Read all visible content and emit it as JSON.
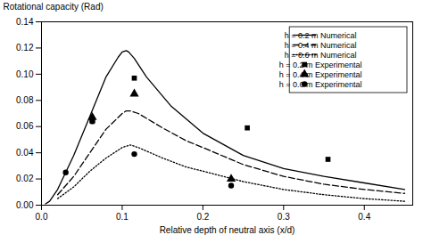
{
  "chart_data": {
    "type": "line",
    "xlabel": "Relative depth of neutral axis (x/d)",
    "ylabel": "Rotational capacity (Rad)",
    "xlim": [
      0,
      0.46
    ],
    "ylim": [
      0,
      0.14
    ],
    "xticks": [
      {
        "value": 0,
        "label": "0.0"
      },
      0.1,
      0.2,
      0.3,
      0.4
    ],
    "yticks": [
      {
        "value": 0,
        "label": "0.00"
      },
      0.02,
      0.04,
      0.06,
      0.08,
      {
        "value": 0.1,
        "label": "0.10"
      },
      0.12,
      0.14
    ],
    "grid": false,
    "legend": "upper right",
    "color": "black",
    "series": [
      {
        "name": "h = 0.2 m Numerical",
        "type": "line",
        "line_style": "solid",
        "x": [
          0.005,
          0.01,
          0.02,
          0.04,
          0.06,
          0.08,
          0.095,
          0.1,
          0.105,
          0.108,
          0.115,
          0.13,
          0.16,
          0.2,
          0.25,
          0.3,
          0.35,
          0.4,
          0.45
        ],
        "values": [
          0.001,
          0.003,
          0.012,
          0.038,
          0.068,
          0.098,
          0.113,
          0.117,
          0.118,
          0.117,
          0.112,
          0.098,
          0.076,
          0.055,
          0.038,
          0.028,
          0.022,
          0.017,
          0.012
        ]
      },
      {
        "name": "h = 0.4 m Numerical",
        "type": "line",
        "line_style": "dashed",
        "x": [
          0.02,
          0.04,
          0.06,
          0.08,
          0.1,
          0.105,
          0.11,
          0.12,
          0.15,
          0.18,
          0.2,
          0.25,
          0.3,
          0.35,
          0.4,
          0.45
        ],
        "values": [
          0.008,
          0.022,
          0.04,
          0.058,
          0.07,
          0.072,
          0.072,
          0.07,
          0.059,
          0.049,
          0.044,
          0.031,
          0.022,
          0.016,
          0.012,
          0.009
        ]
      },
      {
        "name": "h = 0.6 m Numerical",
        "type": "line",
        "line_style": "dotted",
        "x": [
          0.02,
          0.04,
          0.06,
          0.08,
          0.1,
          0.105,
          0.11,
          0.12,
          0.15,
          0.18,
          0.2,
          0.25,
          0.3,
          0.35,
          0.4,
          0.45
        ],
        "values": [
          0.005,
          0.014,
          0.026,
          0.036,
          0.044,
          0.045,
          0.046,
          0.044,
          0.036,
          0.029,
          0.026,
          0.018,
          0.012,
          0.008,
          0.005,
          0.003
        ]
      },
      {
        "name": "h = 0.2 m Experimental",
        "type": "scatter",
        "marker": "square",
        "x": [
          0.063,
          0.115,
          0.255,
          0.355
        ],
        "values": [
          0.064,
          0.097,
          0.059,
          0.035
        ]
      },
      {
        "name": "h = 0.4 m Experimental",
        "type": "scatter",
        "marker": "triangle",
        "x": [
          0.063,
          0.115,
          0.235
        ],
        "values": [
          0.067,
          0.085,
          0.02
        ]
      },
      {
        "name": "h = 0.6 m Experimental",
        "type": "scatter",
        "marker": "circle",
        "x": [
          0.03,
          0.063,
          0.115,
          0.235
        ],
        "values": [
          0.025,
          0.064,
          0.039,
          0.015
        ]
      }
    ]
  }
}
